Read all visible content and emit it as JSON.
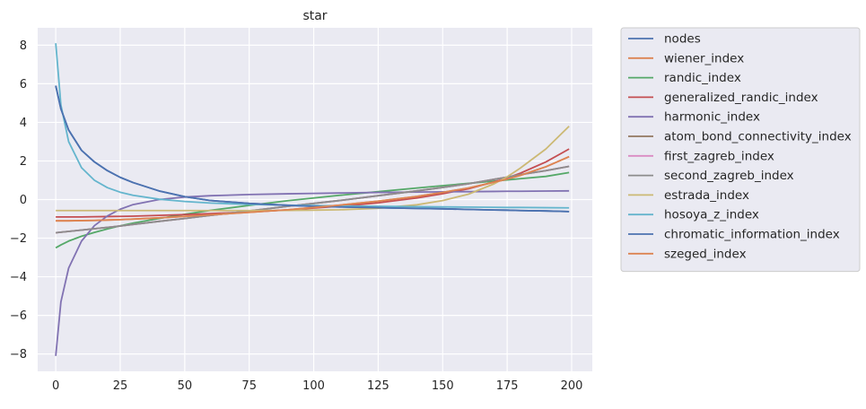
{
  "chart_data": {
    "type": "line",
    "title": "star",
    "xlabel": "",
    "ylabel": "",
    "xlim": [
      -7,
      208
    ],
    "ylim": [
      -8.9,
      8.9
    ],
    "xticks": [
      0,
      25,
      50,
      75,
      100,
      125,
      150,
      175,
      200
    ],
    "yticks": [
      -8,
      -6,
      -4,
      -2,
      0,
      2,
      4,
      6,
      8
    ],
    "grid": true,
    "legend_position": "outside-right-top",
    "x": [
      0,
      2,
      5,
      10,
      15,
      20,
      25,
      30,
      40,
      50,
      60,
      75,
      90,
      100,
      110,
      125,
      140,
      150,
      160,
      170,
      175,
      180,
      190,
      199
    ],
    "series": [
      {
        "name": "nodes",
        "color": "#4c72b0",
        "values": [
          5.9,
          4.7,
          3.6,
          2.55,
          1.95,
          1.5,
          1.15,
          0.88,
          0.45,
          0.15,
          -0.05,
          -0.2,
          -0.3,
          -0.35,
          -0.38,
          -0.42,
          -0.46,
          -0.48,
          -0.51,
          -0.54,
          -0.55,
          -0.57,
          -0.59,
          -0.62
        ]
      },
      {
        "name": "wiener_index",
        "color": "#dd8452",
        "values": [
          -1.1,
          -1.1,
          -1.1,
          -1.09,
          -1.08,
          -1.06,
          -1.04,
          -1.01,
          -0.95,
          -0.87,
          -0.79,
          -0.66,
          -0.53,
          -0.41,
          -0.29,
          -0.08,
          0.16,
          0.37,
          0.6,
          0.9,
          1.06,
          1.25,
          1.7,
          2.22
        ]
      },
      {
        "name": "randic_index",
        "color": "#55a868",
        "values": [
          -2.5,
          -2.35,
          -2.15,
          -1.9,
          -1.7,
          -1.52,
          -1.36,
          -1.22,
          -0.98,
          -0.76,
          -0.56,
          -0.3,
          -0.06,
          0.08,
          0.22,
          0.41,
          0.6,
          0.72,
          0.84,
          0.96,
          1.02,
          1.08,
          1.2,
          1.4
        ]
      },
      {
        "name": "generalized_randic_index",
        "color": "#c44e52",
        "values": [
          -0.9,
          -0.9,
          -0.9,
          -0.9,
          -0.89,
          -0.88,
          -0.87,
          -0.86,
          -0.82,
          -0.78,
          -0.73,
          -0.64,
          -0.54,
          -0.44,
          -0.35,
          -0.17,
          0.08,
          0.3,
          0.56,
          0.92,
          1.12,
          1.36,
          1.95,
          2.62
        ]
      },
      {
        "name": "harmonic_index",
        "color": "#8172b2",
        "values": [
          -8.1,
          -5.3,
          -3.55,
          -2.15,
          -1.35,
          -0.85,
          -0.5,
          -0.26,
          0.0,
          0.13,
          0.2,
          0.26,
          0.3,
          0.32,
          0.34,
          0.37,
          0.39,
          0.4,
          0.41,
          0.42,
          0.43,
          0.43,
          0.44,
          0.45
        ]
      },
      {
        "name": "atom_bond_connectivity_index",
        "color": "#937860",
        "values": [
          -1.72,
          -1.69,
          -1.65,
          -1.58,
          -1.51,
          -1.44,
          -1.37,
          -1.29,
          -1.13,
          -0.98,
          -0.82,
          -0.59,
          -0.35,
          -0.2,
          -0.05,
          0.2,
          0.45,
          0.63,
          0.82,
          1.05,
          1.16,
          1.29,
          1.5,
          1.72
        ]
      },
      {
        "name": "first_zagreb_index",
        "color": "#da8bc3",
        "values": [
          -1.72,
          -1.69,
          -1.65,
          -1.58,
          -1.51,
          -1.44,
          -1.37,
          -1.29,
          -1.13,
          -0.98,
          -0.82,
          -0.59,
          -0.35,
          -0.2,
          -0.05,
          0.2,
          0.45,
          0.63,
          0.82,
          1.05,
          1.16,
          1.29,
          1.5,
          1.72
        ]
      },
      {
        "name": "second_zagreb_index",
        "color": "#8c8c8c",
        "values": [
          -1.72,
          -1.69,
          -1.65,
          -1.58,
          -1.51,
          -1.44,
          -1.37,
          -1.29,
          -1.13,
          -0.98,
          -0.82,
          -0.59,
          -0.35,
          -0.2,
          -0.05,
          0.2,
          0.45,
          0.63,
          0.82,
          1.05,
          1.16,
          1.29,
          1.5,
          1.72
        ]
      },
      {
        "name": "estrada_index",
        "color": "#ccb974",
        "values": [
          -0.57,
          -0.57,
          -0.57,
          -0.57,
          -0.57,
          -0.57,
          -0.57,
          -0.57,
          -0.57,
          -0.57,
          -0.57,
          -0.57,
          -0.56,
          -0.55,
          -0.53,
          -0.45,
          -0.27,
          -0.05,
          0.28,
          0.82,
          1.18,
          1.62,
          2.62,
          3.8
        ]
      },
      {
        "name": "hosoya_z_index",
        "color": "#64b5cd",
        "values": [
          8.1,
          4.9,
          3.0,
          1.65,
          1.0,
          0.62,
          0.38,
          0.22,
          0.02,
          -0.1,
          -0.18,
          -0.25,
          -0.29,
          -0.31,
          -0.33,
          -0.35,
          -0.37,
          -0.38,
          -0.39,
          -0.4,
          -0.41,
          -0.41,
          -0.42,
          -0.43
        ]
      },
      {
        "name": "chromatic_information_index",
        "color": "#4c72b0",
        "values": [
          5.9,
          4.7,
          3.6,
          2.55,
          1.95,
          1.5,
          1.15,
          0.88,
          0.45,
          0.15,
          -0.05,
          -0.2,
          -0.3,
          -0.35,
          -0.38,
          -0.42,
          -0.46,
          -0.48,
          -0.51,
          -0.54,
          -0.55,
          -0.57,
          -0.59,
          -0.62
        ]
      },
      {
        "name": "szeged_index",
        "color": "#dd8452",
        "values": [
          -1.1,
          -1.1,
          -1.1,
          -1.09,
          -1.08,
          -1.06,
          -1.04,
          -1.01,
          -0.95,
          -0.87,
          -0.79,
          -0.66,
          -0.53,
          -0.41,
          -0.29,
          -0.08,
          0.16,
          0.37,
          0.6,
          0.9,
          1.06,
          1.25,
          1.7,
          2.22
        ]
      }
    ]
  },
  "colors": {
    "plot_background": "#eaeaf2",
    "grid": "#ffffff",
    "text": "#262626",
    "legend_border": "#cccccc"
  }
}
